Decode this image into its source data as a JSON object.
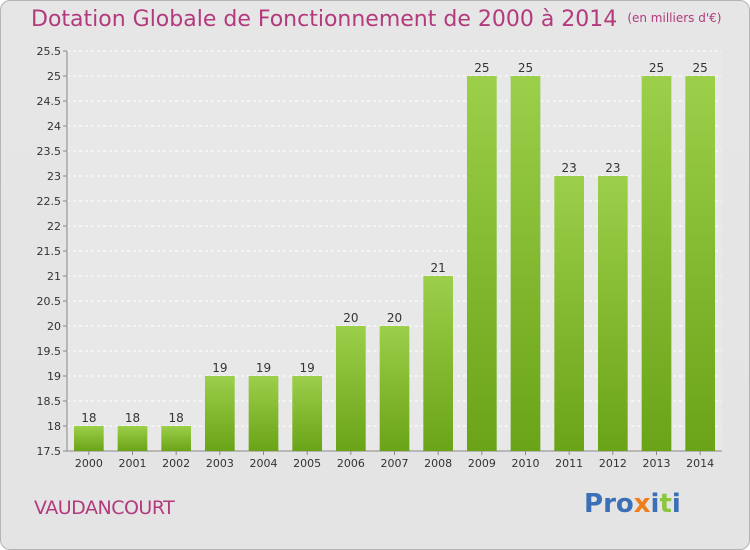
{
  "header": {
    "title": "Dotation Globale de Fonctionnement de 2000 à 2014",
    "unit": "(en milliers d'€)"
  },
  "footer": {
    "commune": "VAUDANCOURT",
    "logo": "Proxiti"
  },
  "colors": {
    "title": "#b23a7d",
    "bar_light": "#9ccf4a",
    "bar_dark": "#6aa318",
    "logo_letters": [
      "#3b6fb6",
      "#3b6fb6",
      "#3b6fb6",
      "#f07d1a",
      "#3b6fb6",
      "#8cc63f",
      "#3b6fb6"
    ]
  },
  "chart_data": {
    "type": "bar",
    "title": "Dotation Globale de Fonctionnement de 2000 à 2014",
    "subtitle": "(en milliers d'€)",
    "xlabel": "",
    "ylabel": "",
    "categories": [
      "2000",
      "2001",
      "2002",
      "2003",
      "2004",
      "2005",
      "2006",
      "2007",
      "2008",
      "2009",
      "2010",
      "2011",
      "2012",
      "2013",
      "2014"
    ],
    "values": [
      18,
      18,
      18,
      19,
      19,
      19,
      20,
      20,
      21,
      25,
      25,
      23,
      23,
      25,
      25
    ],
    "data_labels": [
      "18",
      "18",
      "18",
      "19",
      "19",
      "19",
      "20",
      "20",
      "21",
      "25",
      "25",
      "23",
      "23",
      "25",
      "25"
    ],
    "ylim": [
      17.5,
      25.5
    ],
    "yticks": [
      17.5,
      18,
      18.5,
      19,
      19.5,
      20,
      20.5,
      21,
      21.5,
      22,
      22.5,
      23,
      23.5,
      24,
      24.5,
      25,
      25.5
    ],
    "ytick_labels": [
      "17.5",
      "18",
      "18.5",
      "19",
      "19.5",
      "20",
      "20.5",
      "21",
      "21.5",
      "22",
      "22.5",
      "23",
      "23.5",
      "24",
      "24.5",
      "25",
      "25.5"
    ],
    "grid": true,
    "legend": "none"
  }
}
